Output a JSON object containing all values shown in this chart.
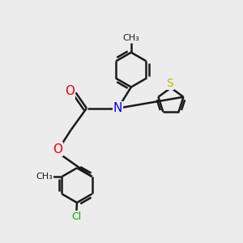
{
  "bg_color": "#ececec",
  "bond_color": "#1a1a1a",
  "bond_width": 1.8,
  "N_color": "#0000ee",
  "O_color": "#ee0000",
  "S_color": "#bbbb00",
  "Cl_color": "#00aa00",
  "figsize": [
    3.0,
    3.0
  ],
  "dpi": 100,
  "xlim": [
    0,
    10
  ],
  "ylim": [
    0,
    10
  ],
  "label_fs": 9,
  "hex_r": 0.72,
  "th_r": 0.55
}
